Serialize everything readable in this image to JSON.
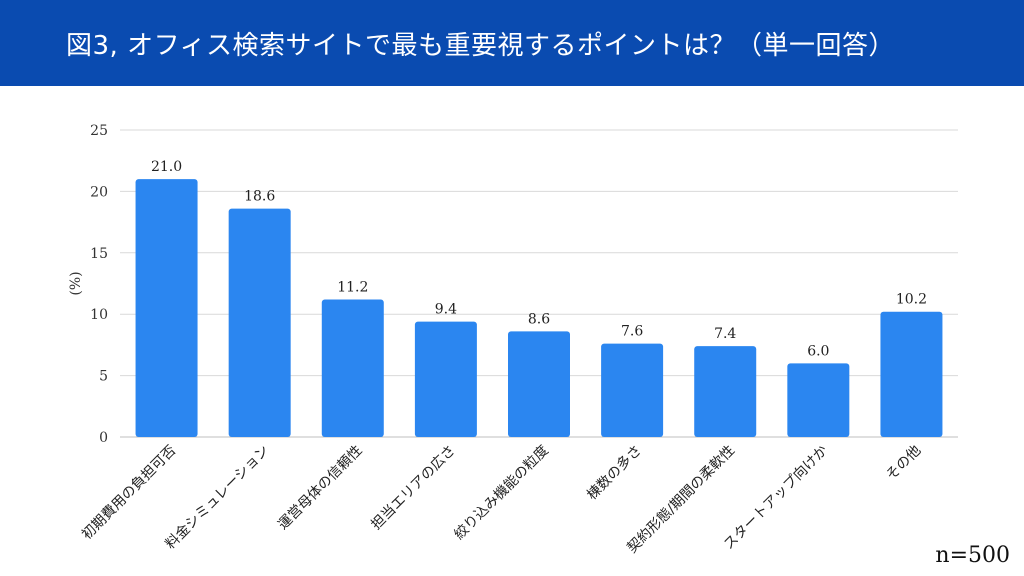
{
  "header": {
    "title": "図3, オフィス検索サイトで最も重要視するポイントは？（単一回答）"
  },
  "footer": {
    "sample_size": "n=500"
  },
  "colors": {
    "header_bg": "#0a4bb0",
    "bar": "#2b86f0",
    "grid": "#d9d9d9"
  },
  "chart_data": {
    "type": "bar",
    "title": "図3, オフィス検索サイトで最も重要視するポイントは？（単一回答）",
    "xlabel": "",
    "ylabel": "(%)",
    "ylim": [
      0,
      25
    ],
    "yticks": [
      0,
      5,
      10,
      15,
      20,
      25
    ],
    "grid": true,
    "categories": [
      "初期費用の負担可否",
      "料金シミュレーション",
      "運営母体の信頼性",
      "担当エリアの広さ",
      "絞り込み機能の粒度",
      "棟数の多さ",
      "契約形態/期間の柔軟性",
      "スタートアップ向けか",
      "その他"
    ],
    "values": [
      21.0,
      18.6,
      11.2,
      9.4,
      8.6,
      7.6,
      7.4,
      6.0,
      10.2
    ],
    "value_labels": [
      "21.0",
      "18.6",
      "11.2",
      "9.4",
      "8.6",
      "7.6",
      "7.4",
      "6.0",
      "10.2"
    ]
  }
}
